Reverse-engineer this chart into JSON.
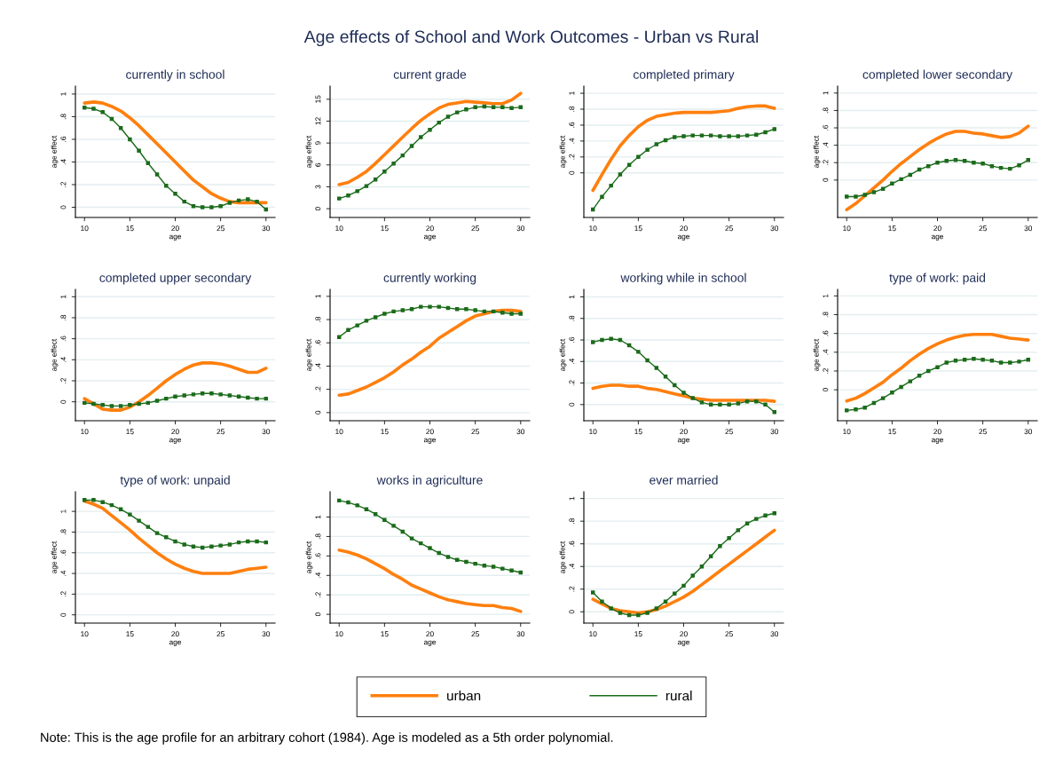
{
  "chart_data": [
    {
      "type": "line",
      "title": "currently in school",
      "xlabel": "age",
      "ylabel": "age effect",
      "annotations": [
        "Age effects of School and Work Outcomes - Urban vs Rural"
      ],
      "x": [
        10,
        11,
        12,
        13,
        14,
        15,
        16,
        17,
        18,
        19,
        20,
        21,
        22,
        23,
        24,
        25,
        26,
        27,
        28,
        29,
        30
      ],
      "xlim": [
        9,
        31
      ],
      "xticks": [
        10,
        15,
        20,
        25,
        30
      ],
      "ylim": [
        -0.09,
        1.07
      ],
      "yticks": [
        0,
        {
          "value": 0.2,
          "label": ".2"
        },
        {
          "value": 0.4,
          "label": ".4"
        },
        {
          "value": 0.6,
          "label": ".6"
        },
        {
          "value": 0.8,
          "label": ".8"
        },
        1
      ],
      "grid": "y",
      "series": [
        {
          "color": "#ff7f0e",
          "marker": "none",
          "values": [
            0.92,
            0.93,
            0.92,
            0.89,
            0.85,
            0.79,
            0.72,
            0.64,
            0.56,
            0.48,
            0.4,
            0.32,
            0.24,
            0.18,
            0.12,
            0.08,
            0.05,
            0.04,
            0.04,
            0.04,
            0.04
          ]
        },
        {
          "color": "#1b6b1b",
          "marker": "square",
          "values": [
            0.88,
            0.87,
            0.84,
            0.78,
            0.7,
            0.6,
            0.5,
            0.39,
            0.29,
            0.19,
            0.12,
            0.05,
            0.01,
            0.0,
            0.0,
            0.01,
            0.04,
            0.06,
            0.07,
            0.05,
            -0.02
          ]
        }
      ]
    },
    {
      "type": "line",
      "title": "current grade",
      "xlabel": "age",
      "ylabel": "age effect",
      "x": [
        10,
        11,
        12,
        13,
        14,
        15,
        16,
        17,
        18,
        19,
        20,
        21,
        22,
        23,
        24,
        25,
        26,
        27,
        28,
        29,
        30
      ],
      "xlim": [
        9,
        31
      ],
      "xticks": [
        10,
        15,
        20,
        25,
        30
      ],
      "ylim": [
        -1.2,
        16.8
      ],
      "yticks": [
        0,
        3,
        6,
        9,
        12,
        15
      ],
      "grid": "y",
      "series": [
        {
          "color": "#ff7f0e",
          "marker": "none",
          "values": [
            3.3,
            3.6,
            4.3,
            5.1,
            6.2,
            7.4,
            8.6,
            9.8,
            11.0,
            12.1,
            13.0,
            13.8,
            14.3,
            14.5,
            14.7,
            14.6,
            14.5,
            14.4,
            14.4,
            14.9,
            15.8
          ]
        },
        {
          "color": "#1b6b1b",
          "marker": "square",
          "values": [
            1.4,
            1.8,
            2.4,
            3.1,
            4.0,
            5.1,
            6.2,
            7.3,
            8.6,
            9.8,
            10.8,
            11.8,
            12.6,
            13.2,
            13.6,
            13.9,
            14.0,
            13.9,
            13.9,
            13.8,
            13.9
          ]
        }
      ]
    },
    {
      "type": "line",
      "title": "completed primary",
      "xlabel": "age",
      "ylabel": "age effect",
      "x": [
        10,
        11,
        12,
        13,
        14,
        15,
        16,
        17,
        18,
        19,
        20,
        21,
        22,
        23,
        24,
        25,
        26,
        27,
        28,
        29,
        30
      ],
      "xlim": [
        9,
        31
      ],
      "xticks": [
        10,
        15,
        20,
        25,
        30
      ],
      "ylim": [
        -0.56,
        1.09
      ],
      "yticks": [
        0,
        {
          "value": 0.2,
          "label": ".2"
        },
        {
          "value": 0.4,
          "label": ".4"
        },
        {
          "value": 0.6,
          "label": ".6"
        },
        {
          "value": 0.8,
          "label": ".8"
        },
        1
      ],
      "grid": "y",
      "series": [
        {
          "color": "#ff7f0e",
          "marker": "none",
          "values": [
            -0.22,
            -0.02,
            0.17,
            0.34,
            0.47,
            0.58,
            0.66,
            0.71,
            0.73,
            0.75,
            0.76,
            0.76,
            0.76,
            0.76,
            0.77,
            0.78,
            0.81,
            0.83,
            0.84,
            0.84,
            0.81
          ]
        },
        {
          "color": "#1b6b1b",
          "marker": "square",
          "values": [
            -0.46,
            -0.3,
            -0.16,
            -0.02,
            0.1,
            0.2,
            0.29,
            0.36,
            0.41,
            0.45,
            0.46,
            0.47,
            0.47,
            0.47,
            0.46,
            0.46,
            0.46,
            0.47,
            0.48,
            0.51,
            0.55
          ]
        }
      ]
    },
    {
      "type": "line",
      "title": "completed lower secondary",
      "xlabel": "age",
      "ylabel": "age effect",
      "x": [
        10,
        11,
        12,
        13,
        14,
        15,
        16,
        17,
        18,
        19,
        20,
        21,
        22,
        23,
        24,
        25,
        26,
        27,
        28,
        29,
        30
      ],
      "xlim": [
        9,
        31
      ],
      "xticks": [
        10,
        15,
        20,
        25,
        30
      ],
      "ylim": [
        -0.43,
        1.08
      ],
      "yticks": [
        0,
        {
          "value": 0.2,
          "label": ".2"
        },
        {
          "value": 0.4,
          "label": ".4"
        },
        {
          "value": 0.6,
          "label": ".6"
        },
        {
          "value": 0.8,
          "label": ".8"
        },
        1
      ],
      "grid": "y",
      "series": [
        {
          "color": "#ff7f0e",
          "marker": "none",
          "values": [
            -0.34,
            -0.27,
            -0.18,
            -0.09,
            0.0,
            0.1,
            0.19,
            0.27,
            0.35,
            0.42,
            0.48,
            0.53,
            0.56,
            0.56,
            0.54,
            0.53,
            0.51,
            0.49,
            0.5,
            0.54,
            0.62
          ]
        },
        {
          "color": "#1b6b1b",
          "marker": "square",
          "values": [
            -0.19,
            -0.19,
            -0.17,
            -0.14,
            -0.1,
            -0.04,
            0.01,
            0.06,
            0.12,
            0.16,
            0.2,
            0.22,
            0.23,
            0.22,
            0.2,
            0.19,
            0.16,
            0.14,
            0.13,
            0.17,
            0.23
          ]
        }
      ]
    },
    {
      "type": "line",
      "title": "completed upper secondary",
      "xlabel": "age",
      "ylabel": "age effect",
      "x": [
        10,
        11,
        12,
        13,
        14,
        15,
        16,
        17,
        18,
        19,
        20,
        21,
        22,
        23,
        24,
        25,
        26,
        27,
        28,
        29,
        30
      ],
      "xlim": [
        9,
        31
      ],
      "xticks": [
        10,
        15,
        20,
        25,
        30
      ],
      "ylim": [
        -0.18,
        1.07
      ],
      "yticks": [
        0,
        {
          "value": 0.2,
          "label": ".2"
        },
        {
          "value": 0.4,
          "label": ".4"
        },
        {
          "value": 0.6,
          "label": ".6"
        },
        {
          "value": 0.8,
          "label": ".8"
        },
        1
      ],
      "grid": "y",
      "series": [
        {
          "color": "#ff7f0e",
          "marker": "none",
          "values": [
            0.03,
            -0.02,
            -0.07,
            -0.08,
            -0.08,
            -0.05,
            0.0,
            0.06,
            0.13,
            0.2,
            0.26,
            0.31,
            0.35,
            0.37,
            0.37,
            0.36,
            0.34,
            0.31,
            0.28,
            0.28,
            0.32
          ]
        },
        {
          "color": "#1b6b1b",
          "marker": "square",
          "values": [
            -0.01,
            -0.02,
            -0.03,
            -0.04,
            -0.04,
            -0.03,
            -0.02,
            -0.01,
            0.01,
            0.03,
            0.05,
            0.06,
            0.07,
            0.08,
            0.08,
            0.07,
            0.06,
            0.05,
            0.04,
            0.03,
            0.03
          ]
        }
      ]
    },
    {
      "type": "line",
      "title": "currently working",
      "xlabel": "age",
      "ylabel": "age effect",
      "x": [
        10,
        11,
        12,
        13,
        14,
        15,
        16,
        17,
        18,
        19,
        20,
        21,
        22,
        23,
        24,
        25,
        26,
        27,
        28,
        29,
        30
      ],
      "xlim": [
        9,
        31
      ],
      "xticks": [
        10,
        15,
        20,
        25,
        30
      ],
      "ylim": [
        -0.07,
        1.06
      ],
      "yticks": [
        0,
        {
          "value": 0.2,
          "label": ".2"
        },
        {
          "value": 0.4,
          "label": ".4"
        },
        {
          "value": 0.6,
          "label": ".6"
        },
        {
          "value": 0.8,
          "label": ".8"
        },
        1
      ],
      "grid": "y",
      "series": [
        {
          "color": "#ff7f0e",
          "marker": "none",
          "values": [
            0.15,
            0.16,
            0.19,
            0.22,
            0.26,
            0.3,
            0.35,
            0.41,
            0.46,
            0.52,
            0.57,
            0.64,
            0.69,
            0.74,
            0.79,
            0.83,
            0.85,
            0.87,
            0.88,
            0.88,
            0.87
          ]
        },
        {
          "color": "#1b6b1b",
          "marker": "square",
          "values": [
            0.65,
            0.71,
            0.75,
            0.79,
            0.82,
            0.85,
            0.87,
            0.88,
            0.89,
            0.91,
            0.91,
            0.91,
            0.9,
            0.89,
            0.89,
            0.88,
            0.87,
            0.87,
            0.86,
            0.85,
            0.85
          ]
        }
      ]
    },
    {
      "type": "line",
      "title": "working while in school",
      "xlabel": "age",
      "ylabel": "age effect",
      "x": [
        10,
        11,
        12,
        13,
        14,
        15,
        16,
        17,
        18,
        19,
        20,
        21,
        22,
        23,
        24,
        25,
        26,
        27,
        28,
        29,
        30
      ],
      "xlim": [
        9,
        31
      ],
      "xticks": [
        10,
        15,
        20,
        25,
        30
      ],
      "ylim": [
        -0.15,
        1.07
      ],
      "yticks": [
        0,
        {
          "value": 0.2,
          "label": ".2"
        },
        {
          "value": 0.4,
          "label": ".4"
        },
        {
          "value": 0.6,
          "label": ".6"
        },
        {
          "value": 0.8,
          "label": ".8"
        },
        1
      ],
      "grid": "y",
      "series": [
        {
          "color": "#ff7f0e",
          "marker": "none",
          "values": [
            0.15,
            0.17,
            0.18,
            0.18,
            0.17,
            0.17,
            0.15,
            0.14,
            0.12,
            0.1,
            0.08,
            0.06,
            0.05,
            0.04,
            0.04,
            0.04,
            0.04,
            0.04,
            0.04,
            0.04,
            0.03
          ]
        },
        {
          "color": "#1b6b1b",
          "marker": "square",
          "values": [
            0.58,
            0.6,
            0.61,
            0.6,
            0.55,
            0.49,
            0.41,
            0.34,
            0.26,
            0.18,
            0.11,
            0.06,
            0.02,
            0.0,
            0.0,
            0.0,
            0.01,
            0.03,
            0.03,
            0.0,
            -0.07
          ]
        }
      ]
    },
    {
      "type": "line",
      "title": "type of work: paid",
      "xlabel": "age",
      "ylabel": "age effect",
      "x": [
        10,
        11,
        12,
        13,
        14,
        15,
        16,
        17,
        18,
        19,
        20,
        21,
        22,
        23,
        24,
        25,
        26,
        27,
        28,
        29,
        30
      ],
      "xlim": [
        9,
        31
      ],
      "xticks": [
        10,
        15,
        20,
        25,
        30
      ],
      "ylim": [
        -0.33,
        1.07
      ],
      "yticks": [
        0,
        {
          "value": 0.2,
          "label": ".2"
        },
        {
          "value": 0.4,
          "label": ".4"
        },
        {
          "value": 0.6,
          "label": ".6"
        },
        {
          "value": 0.8,
          "label": ".8"
        },
        1
      ],
      "grid": "y",
      "series": [
        {
          "color": "#ff7f0e",
          "marker": "none",
          "values": [
            -0.12,
            -0.09,
            -0.04,
            0.02,
            0.08,
            0.16,
            0.23,
            0.31,
            0.38,
            0.44,
            0.49,
            0.53,
            0.56,
            0.58,
            0.59,
            0.59,
            0.59,
            0.57,
            0.55,
            0.54,
            0.53
          ]
        },
        {
          "color": "#1b6b1b",
          "marker": "square",
          "values": [
            -0.22,
            -0.21,
            -0.19,
            -0.14,
            -0.09,
            -0.03,
            0.03,
            0.09,
            0.15,
            0.2,
            0.24,
            0.29,
            0.31,
            0.32,
            0.33,
            0.32,
            0.31,
            0.29,
            0.29,
            0.3,
            0.32
          ]
        }
      ]
    },
    {
      "type": "line",
      "title": "type of work: unpaid",
      "xlabel": "age",
      "ylabel": "age effect",
      "x": [
        10,
        11,
        12,
        13,
        14,
        15,
        16,
        17,
        18,
        19,
        20,
        21,
        22,
        23,
        24,
        25,
        26,
        27,
        28,
        29,
        30
      ],
      "xlim": [
        9,
        31
      ],
      "xticks": [
        10,
        15,
        20,
        25,
        30
      ],
      "ylim": [
        -0.08,
        1.19
      ],
      "yticks": [
        0,
        {
          "value": 0.2,
          "label": ".2"
        },
        {
          "value": 0.4,
          "label": ".4"
        },
        {
          "value": 0.6,
          "label": ".6"
        },
        {
          "value": 0.8,
          "label": ".8"
        },
        1
      ],
      "grid": "y",
      "series": [
        {
          "color": "#ff7f0e",
          "marker": "none",
          "values": [
            1.1,
            1.07,
            1.03,
            0.96,
            0.89,
            0.82,
            0.74,
            0.67,
            0.6,
            0.54,
            0.49,
            0.45,
            0.42,
            0.4,
            0.4,
            0.4,
            0.4,
            0.42,
            0.44,
            0.45,
            0.46
          ]
        },
        {
          "color": "#1b6b1b",
          "marker": "square",
          "values": [
            1.11,
            1.11,
            1.09,
            1.06,
            1.02,
            0.97,
            0.91,
            0.85,
            0.79,
            0.75,
            0.71,
            0.68,
            0.66,
            0.65,
            0.66,
            0.67,
            0.68,
            0.7,
            0.71,
            0.71,
            0.7
          ]
        }
      ]
    },
    {
      "type": "line",
      "title": "works in agriculture",
      "xlabel": "age",
      "ylabel": "age effect",
      "x": [
        10,
        11,
        12,
        13,
        14,
        15,
        16,
        17,
        18,
        19,
        20,
        21,
        22,
        23,
        24,
        25,
        26,
        27,
        28,
        29,
        30
      ],
      "xlim": [
        9,
        31
      ],
      "xticks": [
        10,
        15,
        20,
        25,
        30
      ],
      "ylim": [
        -0.09,
        1.26
      ],
      "yticks": [
        0,
        {
          "value": 0.2,
          "label": ".2"
        },
        {
          "value": 0.4,
          "label": ".4"
        },
        {
          "value": 0.6,
          "label": ".6"
        },
        {
          "value": 0.8,
          "label": ".8"
        },
        1
      ],
      "grid": "y",
      "series": [
        {
          "color": "#ff7f0e",
          "marker": "none",
          "values": [
            0.66,
            0.64,
            0.61,
            0.57,
            0.52,
            0.47,
            0.41,
            0.36,
            0.3,
            0.26,
            0.22,
            0.18,
            0.15,
            0.13,
            0.11,
            0.1,
            0.09,
            0.09,
            0.07,
            0.06,
            0.03
          ]
        },
        {
          "color": "#1b6b1b",
          "marker": "square",
          "values": [
            1.17,
            1.15,
            1.12,
            1.08,
            1.03,
            0.97,
            0.91,
            0.85,
            0.78,
            0.73,
            0.68,
            0.63,
            0.59,
            0.56,
            0.54,
            0.52,
            0.5,
            0.49,
            0.47,
            0.45,
            0.43
          ]
        }
      ]
    },
    {
      "type": "line",
      "title": "ever married",
      "xlabel": "age",
      "ylabel": "age effect",
      "legend": "bottom",
      "annotations": [
        "Note: This is the age profile for an arbitrary cohort (1984). Age is modeled as a 5th order polynomial."
      ],
      "x": [
        10,
        11,
        12,
        13,
        14,
        15,
        16,
        17,
        18,
        19,
        20,
        21,
        22,
        23,
        24,
        25,
        26,
        27,
        28,
        29,
        30
      ],
      "xlim": [
        9,
        31
      ],
      "xticks": [
        10,
        15,
        20,
        25,
        30
      ],
      "ylim": [
        -0.1,
        1.06
      ],
      "yticks": [
        0,
        {
          "value": 0.2,
          "label": ".2"
        },
        {
          "value": 0.4,
          "label": ".4"
        },
        {
          "value": 0.6,
          "label": ".6"
        },
        {
          "value": 0.8,
          "label": ".8"
        },
        1
      ],
      "grid": "y",
      "series": [
        {
          "name": "urban",
          "color": "#ff7f0e",
          "marker": "none",
          "values": [
            0.11,
            0.07,
            0.03,
            0.01,
            0.0,
            -0.01,
            0.0,
            0.02,
            0.05,
            0.09,
            0.13,
            0.18,
            0.24,
            0.3,
            0.36,
            0.42,
            0.48,
            0.54,
            0.6,
            0.66,
            0.72
          ]
        },
        {
          "name": "rural",
          "color": "#1b6b1b",
          "marker": "square",
          "values": [
            0.17,
            0.09,
            0.03,
            -0.01,
            -0.03,
            -0.03,
            -0.01,
            0.03,
            0.09,
            0.16,
            0.23,
            0.32,
            0.4,
            0.49,
            0.58,
            0.65,
            0.72,
            0.78,
            0.82,
            0.85,
            0.87
          ]
        }
      ]
    }
  ]
}
